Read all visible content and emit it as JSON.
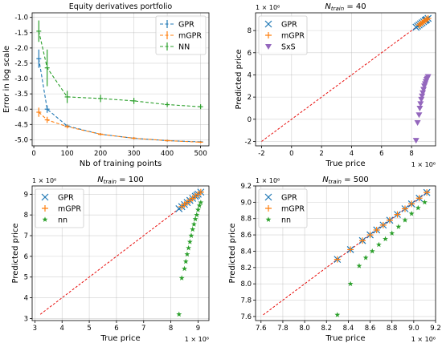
{
  "chart_data": [
    {
      "type": "line",
      "title": "Equity derivatives portfolio",
      "xlabel": "Nb of training points",
      "ylabel": "Error in log scale",
      "xlim": [
        -5,
        525
      ],
      "ylim": [
        -5.2,
        -0.85
      ],
      "xticks": [
        "0",
        "100",
        "200",
        "300",
        "400",
        "500"
      ],
      "yticks": [
        "-5.0",
        "-4.5",
        "-4.0",
        "-3.5",
        "-3.0",
        "-2.5",
        "-2.0",
        "-1.5",
        "-1.0"
      ],
      "grid": true,
      "legend_position": "top-right",
      "series": [
        {
          "name": "GPR",
          "color": "#1f77b4",
          "x": [
            15,
            40,
            100,
            200,
            300,
            400,
            500
          ],
          "y": [
            -2.35,
            -4.0,
            -4.55,
            -4.82,
            -4.95,
            -5.03,
            -5.07
          ],
          "err": [
            0.3,
            0.12,
            0.05,
            0.04,
            0.03,
            0.03,
            0.03
          ]
        },
        {
          "name": "mGPR",
          "color": "#ff7f0e",
          "x": [
            15,
            40,
            100,
            200,
            300,
            400,
            500
          ],
          "y": [
            -4.1,
            -4.35,
            -4.57,
            -4.82,
            -4.95,
            -5.03,
            -5.08
          ],
          "err": [
            0.15,
            0.1,
            0.06,
            0.04,
            0.04,
            0.03,
            0.03
          ]
        },
        {
          "name": "NN",
          "color": "#2ca02c",
          "x": [
            15,
            40,
            100,
            200,
            300,
            400,
            500
          ],
          "y": [
            -1.45,
            -2.65,
            -3.6,
            -3.65,
            -3.73,
            -3.85,
            -3.92
          ],
          "err": [
            0.35,
            0.6,
            0.2,
            0.12,
            0.1,
            0.08,
            0.08
          ]
        }
      ]
    },
    {
      "type": "scatter",
      "title_parts": [
        "N",
        "train",
        " = 40"
      ],
      "xlabel": "True price",
      "ylabel": "Predicted price",
      "scale_label": "1 × 10⁶",
      "xlim": [
        -2.4,
        9.6
      ],
      "ylim": [
        -2.4,
        9.6
      ],
      "xticks": [
        "-2",
        "0",
        "2",
        "4",
        "6",
        "8"
      ],
      "yticks": [
        "-2",
        "0",
        "2",
        "4",
        "6",
        "8"
      ],
      "diagonal": [
        -2,
        8.6
      ],
      "grid": true,
      "legend_position": "top-left",
      "series": [
        {
          "name": "GPR",
          "marker": "x",
          "color": "#1f77b4",
          "points": [
            [
              8.3,
              8.3
            ],
            [
              8.4,
              8.4
            ],
            [
              8.5,
              8.5
            ],
            [
              8.6,
              8.6
            ],
            [
              8.7,
              8.7
            ],
            [
              8.8,
              8.8
            ],
            [
              8.9,
              8.9
            ],
            [
              9.0,
              9.0
            ],
            [
              9.1,
              9.1
            ],
            [
              8.95,
              8.95
            ]
          ]
        },
        {
          "name": "mGPR",
          "marker": "+",
          "color": "#ff7f0e",
          "points": [
            [
              8.5,
              8.5
            ],
            [
              8.6,
              8.6
            ],
            [
              8.7,
              8.7
            ],
            [
              8.8,
              8.8
            ],
            [
              8.9,
              8.9
            ],
            [
              9.0,
              9.0
            ],
            [
              9.1,
              9.1
            ]
          ]
        },
        {
          "name": "SxS",
          "marker": "v",
          "color": "#9467bd",
          "points": [
            [
              8.3,
              -1.9
            ],
            [
              8.4,
              -0.3
            ],
            [
              8.5,
              0.4
            ],
            [
              8.55,
              1.0
            ],
            [
              8.6,
              1.4
            ],
            [
              8.65,
              1.8
            ],
            [
              8.7,
              2.1
            ],
            [
              8.75,
              2.4
            ],
            [
              8.8,
              2.7
            ],
            [
              8.85,
              3.0
            ],
            [
              8.9,
              3.2
            ],
            [
              8.95,
              3.4
            ],
            [
              9.0,
              3.6
            ],
            [
              9.05,
              3.7
            ],
            [
              9.1,
              3.85
            ]
          ]
        }
      ]
    },
    {
      "type": "scatter",
      "title_parts": [
        "N",
        "train",
        " = 100"
      ],
      "xlabel": "True price",
      "ylabel": "Predicted price",
      "scale_label": "1 × 10⁶",
      "xlim": [
        2.9,
        9.4
      ],
      "ylim": [
        2.9,
        9.4
      ],
      "xticks": [
        "3",
        "4",
        "5",
        "6",
        "7",
        "8",
        "9"
      ],
      "yticks": [
        "3",
        "4",
        "5",
        "6",
        "7",
        "8",
        "9"
      ],
      "diagonal": [
        3.2,
        9.1
      ],
      "grid": true,
      "legend_position": "top-left",
      "series": [
        {
          "name": "GPR",
          "marker": "x",
          "color": "#1f77b4",
          "points": [
            [
              8.3,
              8.3
            ],
            [
              8.4,
              8.4
            ],
            [
              8.5,
              8.5
            ],
            [
              8.6,
              8.6
            ],
            [
              8.7,
              8.7
            ],
            [
              8.8,
              8.8
            ],
            [
              8.9,
              8.9
            ],
            [
              9.0,
              9.0
            ],
            [
              9.1,
              9.1
            ],
            [
              8.95,
              8.95
            ]
          ]
        },
        {
          "name": "mGPR",
          "marker": "+",
          "color": "#ff7f0e",
          "points": [
            [
              8.4,
              8.4
            ],
            [
              8.5,
              8.5
            ],
            [
              8.6,
              8.6
            ],
            [
              8.7,
              8.7
            ],
            [
              8.8,
              8.8
            ],
            [
              8.9,
              8.9
            ],
            [
              9.0,
              9.0
            ],
            [
              9.1,
              9.1
            ]
          ]
        },
        {
          "name": "nn",
          "marker": "*",
          "color": "#2ca02c",
          "points": [
            [
              8.3,
              3.2
            ],
            [
              8.4,
              4.95
            ],
            [
              8.5,
              5.4
            ],
            [
              8.55,
              5.75
            ],
            [
              8.6,
              6.1
            ],
            [
              8.65,
              6.4
            ],
            [
              8.7,
              6.7
            ],
            [
              8.75,
              7.0
            ],
            [
              8.8,
              7.3
            ],
            [
              8.85,
              7.55
            ],
            [
              8.9,
              7.8
            ],
            [
              8.95,
              8.0
            ],
            [
              9.0,
              8.25
            ],
            [
              9.05,
              8.45
            ],
            [
              9.1,
              8.6
            ]
          ]
        }
      ]
    },
    {
      "type": "scatter",
      "title_parts": [
        "N",
        "train",
        " = 500"
      ],
      "xlabel": "True price",
      "ylabel": "Predicted price",
      "scale_label": "1 × 10⁶",
      "xlim": [
        7.55,
        9.2
      ],
      "ylim": [
        7.55,
        9.2
      ],
      "xticks": [
        "7.6",
        "7.8",
        "8.0",
        "8.2",
        "8.4",
        "8.6",
        "8.8",
        "9.0",
        "9.2"
      ],
      "yticks": [
        "7.6",
        "7.8",
        "8.0",
        "8.2",
        "8.4",
        "8.6",
        "8.8",
        "9.0",
        "9.2"
      ],
      "diagonal": [
        7.62,
        9.15
      ],
      "grid": true,
      "legend_position": "top-left",
      "series": [
        {
          "name": "GPR",
          "marker": "x",
          "color": "#1f77b4",
          "points": [
            [
              8.3,
              8.3
            ],
            [
              8.42,
              8.42
            ],
            [
              8.53,
              8.53
            ],
            [
              8.6,
              8.6
            ],
            [
              8.66,
              8.66
            ],
            [
              8.72,
              8.72
            ],
            [
              8.78,
              8.78
            ],
            [
              8.85,
              8.85
            ],
            [
              8.92,
              8.92
            ],
            [
              8.98,
              8.98
            ],
            [
              9.05,
              9.05
            ],
            [
              9.12,
              9.12
            ]
          ]
        },
        {
          "name": "mGPR",
          "marker": "+",
          "color": "#ff7f0e",
          "points": [
            [
              8.3,
              8.3
            ],
            [
              8.42,
              8.42
            ],
            [
              8.53,
              8.53
            ],
            [
              8.6,
              8.6
            ],
            [
              8.66,
              8.66
            ],
            [
              8.72,
              8.72
            ],
            [
              8.78,
              8.78
            ],
            [
              8.85,
              8.85
            ],
            [
              8.92,
              8.92
            ],
            [
              8.98,
              8.98
            ],
            [
              9.05,
              9.05
            ],
            [
              9.12,
              9.12
            ]
          ]
        },
        {
          "name": "nn",
          "marker": "*",
          "color": "#2ca02c",
          "points": [
            [
              8.3,
              7.62
            ],
            [
              8.42,
              8.0
            ],
            [
              8.5,
              8.22
            ],
            [
              8.56,
              8.32
            ],
            [
              8.62,
              8.4
            ],
            [
              8.68,
              8.48
            ],
            [
              8.74,
              8.55
            ],
            [
              8.8,
              8.62
            ],
            [
              8.86,
              8.7
            ],
            [
              8.92,
              8.78
            ],
            [
              8.98,
              8.86
            ],
            [
              9.04,
              8.93
            ],
            [
              9.1,
              9.0
            ]
          ]
        }
      ]
    }
  ]
}
